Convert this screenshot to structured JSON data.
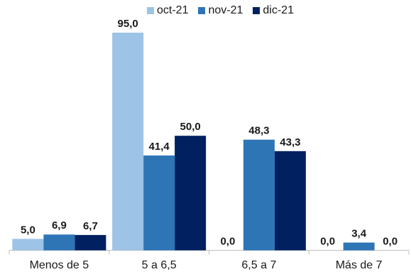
{
  "chart_data": {
    "type": "bar",
    "categories": [
      "Menos de 5",
      "5 a 6,5",
      "6,5 a 7",
      "Más de 7"
    ],
    "series": [
      {
        "name": "oct-21",
        "values": [
          5.0,
          95.0,
          0.0,
          0.0
        ],
        "color": "#9dc3e6",
        "labels": [
          "5,0",
          "95,0",
          "0,0",
          "0,0"
        ]
      },
      {
        "name": "nov-21",
        "values": [
          6.9,
          41.4,
          48.3,
          3.4
        ],
        "color": "#2e75b6",
        "labels": [
          "6,9",
          "41,4",
          "48,3",
          "3,4"
        ]
      },
      {
        "name": "dic-21",
        "values": [
          6.7,
          50.0,
          43.3,
          0.0
        ],
        "color": "#002060",
        "labels": [
          "6,7",
          "50,0",
          "43,3",
          "0,0"
        ]
      }
    ],
    "ylim": [
      0,
      100
    ],
    "grid": false,
    "legend_position": "top"
  }
}
